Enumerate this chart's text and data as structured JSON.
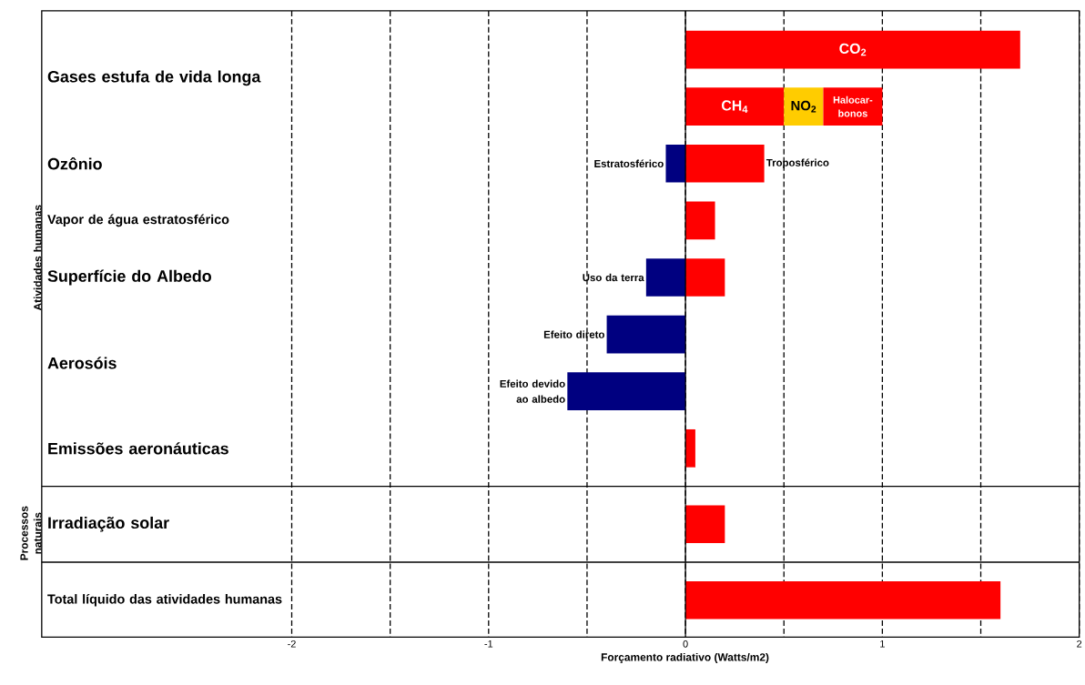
{
  "chart_data": {
    "type": "bar",
    "orientation": "horizontal",
    "xlabel": "Forçamento radiativo (Watts/m2)",
    "categories": [
      "Gases estufa de vida longa",
      null,
      "Ozônio",
      "Vapor de água estratosférico",
      "Superfície do Albedo",
      "Aerosóis",
      null,
      "Emissões aeronáuticas",
      "Irradiação solar",
      "Total líquido das atividades humanas"
    ],
    "series": [
      {
        "name": "CO$_{2}$",
        "color": "#ff0000",
        "values": [
          1.7,
          null,
          null,
          null,
          null,
          null,
          null,
          null,
          null,
          null
        ]
      },
      {
        "name": "CH$_{4}$",
        "color": "#ff0000",
        "values": [
          null,
          0.5,
          null,
          null,
          null,
          null,
          null,
          null,
          null,
          null
        ]
      },
      {
        "name": "NO$_{2}$",
        "color": "#ffcc00",
        "values": [
          null,
          0.2,
          null,
          null,
          null,
          null,
          null,
          null,
          null,
          null
        ],
        "base": [
          null,
          0.5,
          null,
          null,
          null,
          null,
          null,
          null,
          null,
          null
        ]
      },
      {
        "name": "Halocar-bonos",
        "color": "#ff0000",
        "values": [
          null,
          0.3,
          null,
          null,
          null,
          null,
          null,
          null,
          null,
          null
        ],
        "base": [
          null,
          0.7,
          null,
          null,
          null,
          null,
          null,
          null,
          null,
          null
        ]
      },
      {
        "name": "Estratosférico",
        "color": "#000080",
        "values": [
          null,
          null,
          -0.1,
          null,
          null,
          null,
          null,
          null,
          null,
          null
        ]
      },
      {
        "name": "Troposférico",
        "color": "#ff0000",
        "values": [
          null,
          null,
          0.4,
          null,
          null,
          null,
          null,
          null,
          null,
          null
        ]
      },
      {
        "name": "Uso da terra",
        "color": "#000080",
        "values": [
          null,
          null,
          null,
          null,
          -0.2,
          null,
          null,
          null,
          null,
          null
        ]
      },
      {
        "name": "Efeito direto",
        "color": "#000080",
        "values": [
          null,
          null,
          null,
          null,
          null,
          -0.4,
          null,
          null,
          null,
          null
        ]
      },
      {
        "name": "Efeito devido ao albedo",
        "color": "#000080",
        "values": [
          null,
          null,
          null,
          null,
          null,
          null,
          -0.6,
          null,
          null,
          null
        ]
      },
      {
        "color": "#ff0000",
        "values": [
          null,
          null,
          null,
          0.15,
          0.2,
          null,
          null,
          0.05,
          0.2,
          1.6
        ]
      }
    ],
    "xlim": [
      -3.27,
      2
    ],
    "xticks": [
      -2,
      {
        "value": -1.5,
        "label": null
      },
      -1,
      {
        "value": -0.5,
        "label": null
      },
      0,
      {
        "value": 0.5,
        "label": null
      },
      1,
      {
        "value": 1.5,
        "label": null
      },
      2
    ],
    "grid": "x",
    "annotations": [
      "Atividades humanas",
      "Processos naturais"
    ]
  }
}
